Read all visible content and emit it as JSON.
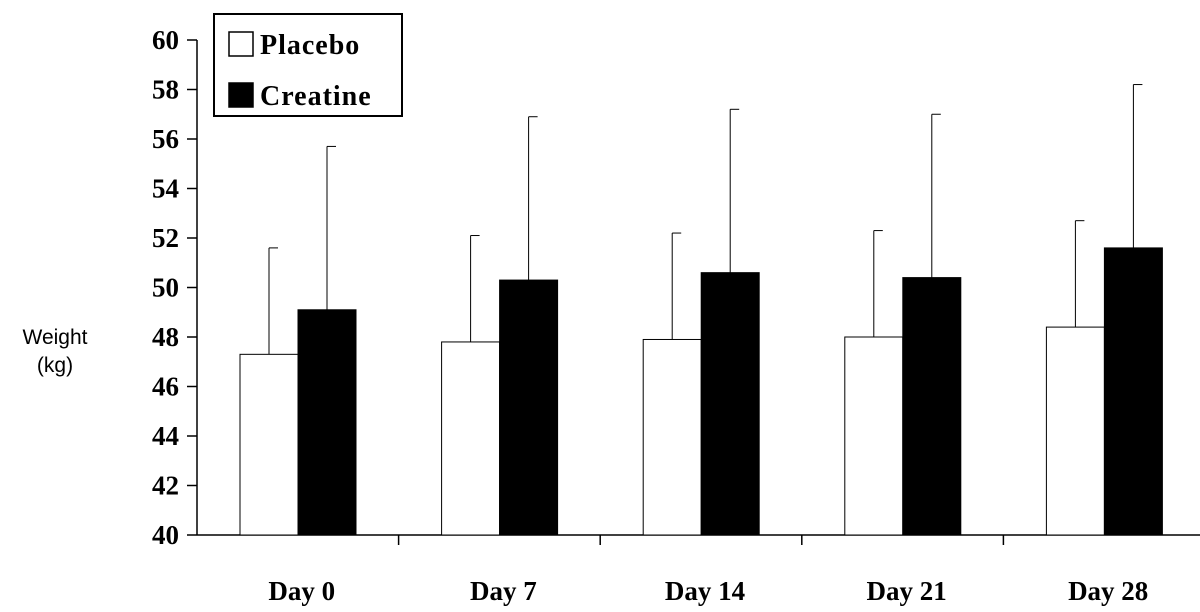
{
  "chart_data": {
    "type": "bar",
    "ylabel_lines": [
      "Weight",
      "(kg)"
    ],
    "categories": [
      "Day 0",
      "Day 7",
      "Day 14",
      "Day 21",
      "Day 28"
    ],
    "ylim": [
      40,
      60
    ],
    "ytick_step": 2,
    "grid": false,
    "legend_position": "top-left",
    "series": [
      {
        "name": "Placebo",
        "values": [
          47.3,
          47.8,
          47.9,
          48.0,
          48.4
        ],
        "error_upper": [
          51.6,
          52.1,
          52.2,
          52.3,
          52.7
        ],
        "fill": "#ffffff",
        "stroke": "#000000"
      },
      {
        "name": "Creatine",
        "values": [
          49.1,
          50.3,
          50.6,
          50.4,
          51.6
        ],
        "error_upper": [
          55.7,
          56.9,
          57.2,
          57.0,
          58.2
        ],
        "fill": "#000000",
        "stroke": "#000000"
      }
    ]
  }
}
